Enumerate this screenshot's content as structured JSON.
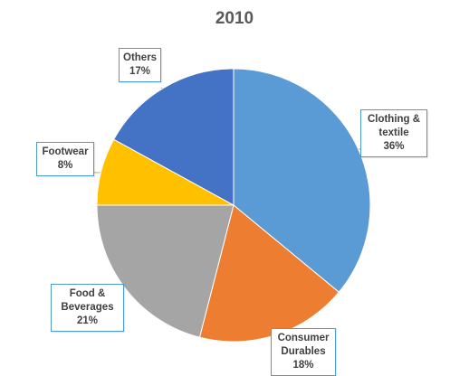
{
  "chart_data": {
    "type": "pie",
    "title": "2010",
    "slices": [
      {
        "name": "Clothing & textile",
        "name_lines": [
          "Clothing &",
          "textile"
        ],
        "value": 36,
        "label": "36%",
        "color": "#5b9bd5"
      },
      {
        "name": "Consumer Durables",
        "name_lines": [
          "Consumer",
          "Durables"
        ],
        "value": 18,
        "label": "18%",
        "color": "#ed7d31"
      },
      {
        "name": "Food & Beverages",
        "name_lines": [
          "Food &",
          "Beverages"
        ],
        "value": 21,
        "label": "21%",
        "color": "#a5a5a5"
      },
      {
        "name": "Footwear",
        "name_lines": [
          "Footwear"
        ],
        "value": 8,
        "label": "8%",
        "color": "#ffc000"
      },
      {
        "name": "Others",
        "name_lines": [
          "Others"
        ],
        "value": 17,
        "label": "17%",
        "color": "#4472c4"
      }
    ],
    "start_angle": "12 o'clock",
    "direction": "clockwise",
    "data_labels": "callouts",
    "legend": "none"
  }
}
